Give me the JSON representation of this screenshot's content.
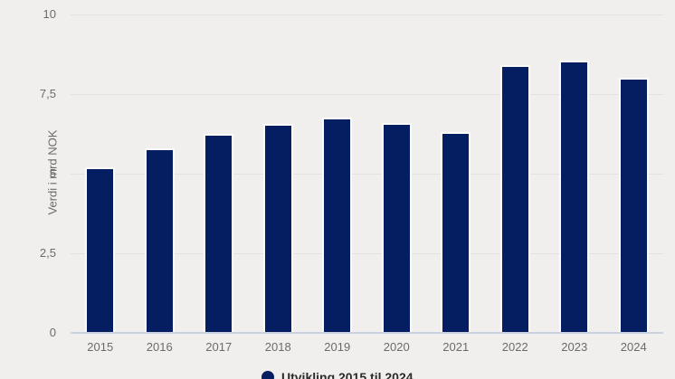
{
  "chart_data": {
    "type": "bar",
    "title": "",
    "xlabel": "",
    "ylabel": "Verdi i mrd NOK",
    "categories": [
      "2015",
      "2016",
      "2017",
      "2018",
      "2019",
      "2020",
      "2021",
      "2022",
      "2023",
      "2024"
    ],
    "values": [
      5.2,
      5.8,
      6.25,
      6.55,
      6.75,
      6.6,
      6.3,
      8.4,
      8.55,
      8.0
    ],
    "ylim": [
      0,
      10
    ],
    "yticks": [
      {
        "value": 10,
        "label": "10"
      },
      {
        "value": 7.5,
        "label": "7,5"
      },
      {
        "value": 5,
        "label": "5"
      },
      {
        "value": 2.5,
        "label": "2,5"
      },
      {
        "value": 0,
        "label": "0"
      }
    ],
    "grid": "horizontal",
    "legend_position": "bottom-center",
    "colors": {
      "bar_fill": "#051e62",
      "bar_outline": "#fbfbf9",
      "background": "#f0efed",
      "gridline": "#e3e2df",
      "baseline": "#ccd1e2",
      "tick_text": "#6c6b69"
    }
  },
  "legend": {
    "label": "Utvikling 2015 til 2024"
  }
}
